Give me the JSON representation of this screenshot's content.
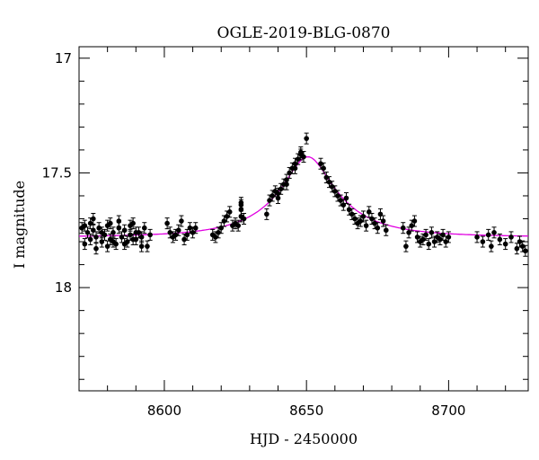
{
  "chart_data": {
    "type": "scatter",
    "title": "OGLE-2019-BLG-0870",
    "xlabel": "HJD - 2450000",
    "ylabel": "I magnitude",
    "xlim": [
      8570,
      8728
    ],
    "ylim": [
      18.45,
      16.95
    ],
    "y_inverted": true,
    "x_ticks": [
      8600,
      8650,
      8700
    ],
    "y_ticks": [
      17,
      17.5,
      18
    ],
    "grid": false,
    "colors": {
      "points": "#000000",
      "model": "#e000e0",
      "axes": "#000000"
    },
    "model": {
      "name": "",
      "baseline": 17.78,
      "t0": 8650.5,
      "peak_mag": 17.43,
      "tE": 11
    },
    "series": [
      {
        "values": [
          [
            8571,
            17.74
          ],
          [
            8572,
            17.73
          ],
          [
            8573,
            17.76
          ],
          [
            8574,
            17.72
          ],
          [
            8575,
            17.75
          ],
          [
            8576,
            17.78
          ],
          [
            8577,
            17.74
          ],
          [
            8578,
            17.8
          ],
          [
            8579,
            17.77
          ],
          [
            8580,
            17.73
          ],
          [
            8581,
            17.79
          ],
          [
            8582,
            17.76
          ],
          [
            8583,
            17.81
          ],
          [
            8584,
            17.74
          ],
          [
            8585,
            17.78
          ],
          [
            8586,
            17.75
          ],
          [
            8587,
            17.8
          ],
          [
            8588,
            17.77
          ],
          [
            8589,
            17.72
          ],
          [
            8590,
            17.79
          ],
          [
            8591,
            17.76
          ],
          [
            8592,
            17.78
          ],
          [
            8593,
            17.74
          ],
          [
            8594,
            17.82
          ],
          [
            8595,
            17.77
          ],
          [
            8572,
            17.81
          ],
          [
            8574,
            17.79
          ],
          [
            8576,
            17.83
          ],
          [
            8578,
            17.76
          ],
          [
            8580,
            17.82
          ],
          [
            8582,
            17.8
          ],
          [
            8584,
            17.71
          ],
          [
            8586,
            17.81
          ],
          [
            8588,
            17.73
          ],
          [
            8590,
            17.76
          ],
          [
            8592,
            17.82
          ],
          [
            8575,
            17.7
          ],
          [
            8581,
            17.72
          ],
          [
            8589,
            17.79
          ],
          [
            8601,
            17.72
          ],
          [
            8602,
            17.76
          ],
          [
            8603,
            17.78
          ],
          [
            8604,
            17.77
          ],
          [
            8605,
            17.75
          ],
          [
            8606,
            17.71
          ],
          [
            8607,
            17.79
          ],
          [
            8608,
            17.77
          ],
          [
            8609,
            17.74
          ],
          [
            8610,
            17.76
          ],
          [
            8611,
            17.74
          ],
          [
            8617,
            17.77
          ],
          [
            8618,
            17.78
          ],
          [
            8619,
            17.76
          ],
          [
            8620,
            17.74
          ],
          [
            8621,
            17.71
          ],
          [
            8622,
            17.69
          ],
          [
            8623,
            17.67
          ],
          [
            8624,
            17.73
          ],
          [
            8625,
            17.72
          ],
          [
            8626,
            17.73
          ],
          [
            8627,
            17.64
          ],
          [
            8627,
            17.63
          ],
          [
            8627,
            17.66
          ],
          [
            8627,
            17.69
          ],
          [
            8628,
            17.7
          ],
          [
            8636,
            17.68
          ],
          [
            8637,
            17.62
          ],
          [
            8638,
            17.6
          ],
          [
            8639,
            17.58
          ],
          [
            8640,
            17.59
          ],
          [
            8641,
            17.57
          ],
          [
            8642,
            17.55
          ],
          [
            8643,
            17.53
          ],
          [
            8644,
            17.5
          ],
          [
            8645,
            17.48
          ],
          [
            8646,
            17.46
          ],
          [
            8647,
            17.44
          ],
          [
            8648,
            17.42
          ],
          [
            8649,
            17.43
          ],
          [
            8650,
            17.35
          ],
          [
            8640,
            17.61
          ],
          [
            8643,
            17.55
          ],
          [
            8646,
            17.48
          ],
          [
            8648,
            17.41
          ],
          [
            8655,
            17.46
          ],
          [
            8656,
            17.48
          ],
          [
            8657,
            17.52
          ],
          [
            8658,
            17.54
          ],
          [
            8659,
            17.56
          ],
          [
            8660,
            17.58
          ],
          [
            8661,
            17.6
          ],
          [
            8662,
            17.62
          ],
          [
            8663,
            17.64
          ],
          [
            8664,
            17.61
          ],
          [
            8665,
            17.66
          ],
          [
            8666,
            17.68
          ],
          [
            8667,
            17.7
          ],
          [
            8668,
            17.72
          ],
          [
            8669,
            17.71
          ],
          [
            8670,
            17.69
          ],
          [
            8671,
            17.73
          ],
          [
            8672,
            17.67
          ],
          [
            8673,
            17.7
          ],
          [
            8674,
            17.72
          ],
          [
            8675,
            17.74
          ],
          [
            8676,
            17.68
          ],
          [
            8677,
            17.71
          ],
          [
            8678,
            17.75
          ],
          [
            8684,
            17.74
          ],
          [
            8685,
            17.82
          ],
          [
            8686,
            17.76
          ],
          [
            8687,
            17.73
          ],
          [
            8688,
            17.71
          ],
          [
            8689,
            17.78
          ],
          [
            8690,
            17.8
          ],
          [
            8691,
            17.79
          ],
          [
            8692,
            17.77
          ],
          [
            8693,
            17.81
          ],
          [
            8694,
            17.76
          ],
          [
            8695,
            17.8
          ],
          [
            8696,
            17.78
          ],
          [
            8697,
            17.79
          ],
          [
            8698,
            17.77
          ],
          [
            8699,
            17.8
          ],
          [
            8700,
            17.78
          ],
          [
            8710,
            17.78
          ],
          [
            8712,
            17.8
          ],
          [
            8714,
            17.77
          ],
          [
            8715,
            17.82
          ],
          [
            8716,
            17.76
          ],
          [
            8718,
            17.79
          ],
          [
            8720,
            17.81
          ],
          [
            8722,
            17.78
          ],
          [
            8724,
            17.83
          ],
          [
            8725,
            17.8
          ],
          [
            8726,
            17.82
          ],
          [
            8727,
            17.84
          ]
        ]
      }
    ]
  }
}
